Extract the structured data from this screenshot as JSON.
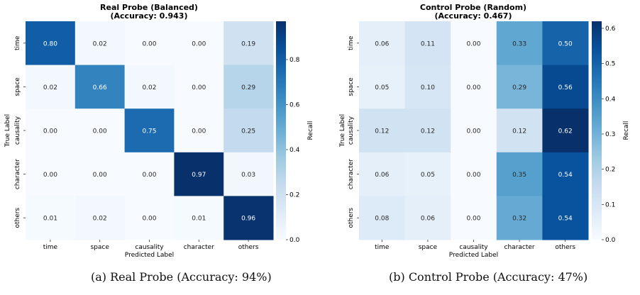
{
  "figure": {
    "caption_a": "(a) Real Probe (Accuracy: 94%)",
    "caption_b": "(b) Control Probe (Accuracy: 47%)"
  },
  "chart_data": [
    {
      "type": "heatmap",
      "title": "Real Probe (Balanced)",
      "subtitle": "(Accuracy: 0.943)",
      "xlabel": "Predicted Label",
      "ylabel": "True Label",
      "x_categories": [
        "time",
        "space",
        "causality",
        "character",
        "others"
      ],
      "y_categories": [
        "time",
        "space",
        "causality",
        "character",
        "others"
      ],
      "values": [
        [
          0.8,
          0.02,
          0.0,
          0.0,
          0.19
        ],
        [
          0.02,
          0.66,
          0.02,
          0.0,
          0.29
        ],
        [
          0.0,
          0.0,
          0.75,
          0.0,
          0.25
        ],
        [
          0.0,
          0.0,
          0.0,
          0.97,
          0.03
        ],
        [
          0.01,
          0.02,
          0.0,
          0.01,
          0.96
        ]
      ],
      "colorbar": {
        "label": "Recall",
        "colormap": "Blues",
        "range": [
          0,
          0.97
        ],
        "ticks": [
          0.0,
          0.2,
          0.4,
          0.6,
          0.8
        ],
        "tick_labels": [
          "0.0",
          "0.2",
          "0.4",
          "0.6",
          "0.8"
        ]
      }
    },
    {
      "type": "heatmap",
      "title": "Control Probe (Random)",
      "subtitle": "(Accuracy: 0.467)",
      "xlabel": "Predicted Label",
      "ylabel": "True Label",
      "x_categories": [
        "time",
        "space",
        "causality",
        "character",
        "others"
      ],
      "y_categories": [
        "time",
        "space",
        "causality",
        "character",
        "others"
      ],
      "values": [
        [
          0.06,
          0.11,
          0.0,
          0.33,
          0.5
        ],
        [
          0.05,
          0.1,
          0.0,
          0.29,
          0.56
        ],
        [
          0.12,
          0.12,
          0.0,
          0.12,
          0.62
        ],
        [
          0.06,
          0.05,
          0.0,
          0.35,
          0.54
        ],
        [
          0.08,
          0.06,
          0.0,
          0.32,
          0.54
        ]
      ],
      "colorbar": {
        "label": "Recall",
        "colormap": "Blues",
        "range": [
          0,
          0.62
        ],
        "ticks": [
          0.0,
          0.1,
          0.2,
          0.3,
          0.4,
          0.5,
          0.6
        ],
        "tick_labels": [
          "0.0",
          "0.1",
          "0.2",
          "0.3",
          "0.4",
          "0.5",
          "0.6"
        ]
      }
    }
  ]
}
